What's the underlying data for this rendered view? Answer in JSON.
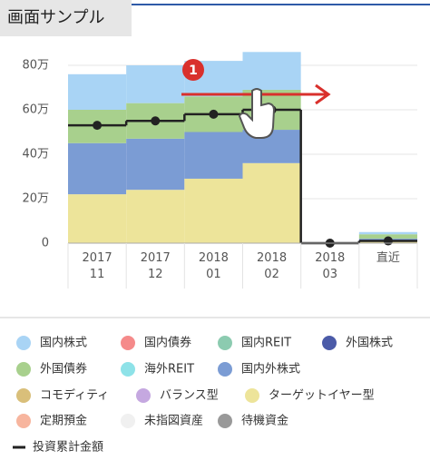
{
  "page_label": "画面サンプル",
  "chart_data": {
    "type": "stacked-step-area",
    "categories": [
      "2017\n11",
      "2017\n12",
      "2018\n01",
      "2018\n02",
      "2018\n03",
      "直近"
    ],
    "ylim": [
      0,
      90
    ],
    "yticks": [
      0,
      {
        "value": 20,
        "label": "20万"
      },
      {
        "value": 40,
        "label": "40万"
      },
      {
        "value": 60,
        "label": "60万"
      },
      {
        "value": 80,
        "label": "80万"
      }
    ],
    "grid": true,
    "series": [
      {
        "name": "国内株式",
        "color": "#a9d4f5",
        "values": [
          16,
          17,
          16,
          17,
          0,
          1
        ]
      },
      {
        "name": "国内債券",
        "color": "#f58a8a",
        "values": [
          null,
          null,
          null,
          null,
          null,
          null
        ]
      },
      {
        "name": "国内REIT",
        "color": "#8ccbb0",
        "values": [
          null,
          null,
          null,
          null,
          null,
          null
        ]
      },
      {
        "name": "外国株式",
        "color": "#4b5ba8",
        "values": [
          null,
          null,
          null,
          null,
          null,
          null
        ]
      },
      {
        "name": "外国債券",
        "color": "#a8d08d",
        "values": [
          15,
          16,
          16,
          18,
          0,
          2
        ]
      },
      {
        "name": "海外REIT",
        "color": "#8ee2e8",
        "values": [
          null,
          null,
          null,
          null,
          null,
          null
        ]
      },
      {
        "name": "国内外株式",
        "color": "#7b9cd4",
        "values": [
          23,
          23,
          21,
          15,
          0,
          1
        ]
      },
      {
        "name": "コモディティ",
        "color": "#d9bf7a",
        "values": [
          null,
          null,
          null,
          null,
          null,
          null
        ]
      },
      {
        "name": "バランス型",
        "color": "#c5a8e0",
        "values": [
          null,
          null,
          null,
          null,
          null,
          null
        ]
      },
      {
        "name": "ターゲットイヤー型",
        "color": "#ede49a",
        "values": [
          22,
          24,
          29,
          36,
          0,
          1
        ]
      },
      {
        "name": "定期預金",
        "color": "#f7b59e",
        "values": [
          null,
          null,
          null,
          null,
          null,
          null
        ]
      },
      {
        "name": "未指図資産",
        "color": "#f0f0f0",
        "values": [
          null,
          null,
          null,
          null,
          null,
          null
        ]
      },
      {
        "name": "待機資金",
        "color": "#999999",
        "values": [
          null,
          null,
          null,
          null,
          null,
          null
        ]
      }
    ],
    "stack_order": [
      9,
      6,
      4,
      0
    ],
    "line": {
      "name": "投資累計金額",
      "color": "#222222",
      "values": [
        53,
        55,
        58,
        60,
        0,
        1
      ]
    },
    "annotation": "1"
  }
}
